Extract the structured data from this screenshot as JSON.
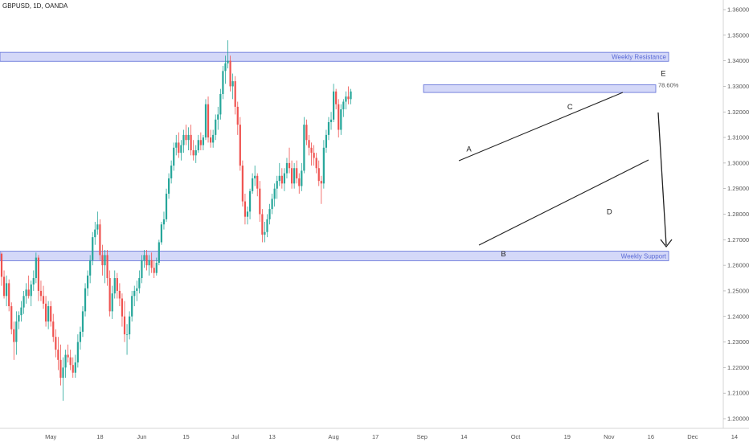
{
  "header": {
    "symbol": "GBPUSD, 1D, OANDA"
  },
  "colors": {
    "bull": "#26a69a",
    "bear": "#ef5350",
    "zone_fill": "#c5cbf5",
    "zone_stroke": "#5b6bd6",
    "zone_text": "#5b6bd6",
    "axis_bg": "#ffffff"
  },
  "chart_data": {
    "type": "candlestick",
    "title": "GBPUSD, 1D, OANDA",
    "ylim": [
      1.198,
      1.364
    ],
    "y_ticks": [
      "1.36000",
      "1.35000",
      "1.34000",
      "1.33000",
      "1.32000",
      "1.31000",
      "1.30000",
      "1.29000",
      "1.28000",
      "1.27000",
      "1.26000",
      "1.25000",
      "1.24000",
      "1.23000",
      "1.22000",
      "1.21000",
      "1.20000"
    ],
    "x_ticks": [
      {
        "label": "May",
        "bar": 20
      },
      {
        "label": "18",
        "bar": 40
      },
      {
        "label": "Jun",
        "bar": 57
      },
      {
        "label": "15",
        "bar": 75
      },
      {
        "label": "Jul",
        "bar": 95
      },
      {
        "label": "13",
        "bar": 110
      },
      {
        "label": "Aug",
        "bar": 135
      },
      {
        "label": "17",
        "bar": 152
      },
      {
        "label": "Sep",
        "bar": 171
      },
      {
        "label": "14",
        "bar": 188
      },
      {
        "label": "Oct",
        "bar": 209
      },
      {
        "label": "19",
        "bar": 230
      },
      {
        "label": "Nov",
        "bar": 247
      },
      {
        "label": "16",
        "bar": 264
      },
      {
        "label": "Dec",
        "bar": 281
      },
      {
        "label": "14",
        "bar": 298
      }
    ],
    "candles": [
      [
        1.2645,
        1.265,
        1.252,
        1.2555
      ],
      [
        1.2555,
        1.258,
        1.247,
        1.248
      ],
      [
        1.248,
        1.256,
        1.244,
        1.253
      ],
      [
        1.253,
        1.2545,
        1.242,
        1.244
      ],
      [
        1.244,
        1.2455,
        1.233,
        1.235
      ],
      [
        1.235,
        1.238,
        1.223,
        1.23
      ],
      [
        1.23,
        1.242,
        1.225,
        1.238
      ],
      [
        1.238,
        1.242,
        1.235,
        1.2405
      ],
      [
        1.2405,
        1.246,
        1.238,
        1.2435
      ],
      [
        1.2435,
        1.25,
        1.241,
        1.248
      ],
      [
        1.248,
        1.253,
        1.245,
        1.2505
      ],
      [
        1.2505,
        1.256,
        1.247,
        1.248
      ],
      [
        1.248,
        1.254,
        1.244,
        1.2525
      ],
      [
        1.2525,
        1.258,
        1.25,
        1.255
      ],
      [
        1.255,
        1.265,
        1.253,
        1.263
      ],
      [
        1.263,
        1.264,
        1.246,
        1.25
      ],
      [
        1.25,
        1.254,
        1.246,
        1.248
      ],
      [
        1.248,
        1.252,
        1.243,
        1.245
      ],
      [
        1.245,
        1.248,
        1.236,
        1.238
      ],
      [
        1.238,
        1.246,
        1.235,
        1.244
      ],
      [
        1.244,
        1.246,
        1.236,
        1.238
      ],
      [
        1.238,
        1.241,
        1.23,
        1.232
      ],
      [
        1.232,
        1.235,
        1.224,
        1.227
      ],
      [
        1.227,
        1.232,
        1.219,
        1.223
      ],
      [
        1.223,
        1.229,
        1.213,
        1.216
      ],
      [
        1.216,
        1.224,
        1.207,
        1.22
      ],
      [
        1.22,
        1.227,
        1.216,
        1.225
      ],
      [
        1.225,
        1.229,
        1.222,
        1.224
      ],
      [
        1.224,
        1.227,
        1.219,
        1.221
      ],
      [
        1.221,
        1.224,
        1.216,
        1.218
      ],
      [
        1.218,
        1.225,
        1.216,
        1.222
      ],
      [
        1.222,
        1.233,
        1.22,
        1.23
      ],
      [
        1.23,
        1.236,
        1.227,
        1.234
      ],
      [
        1.234,
        1.244,
        1.232,
        1.242
      ],
      [
        1.242,
        1.253,
        1.24,
        1.251
      ],
      [
        1.251,
        1.258,
        1.248,
        1.256
      ],
      [
        1.256,
        1.264,
        1.253,
        1.262
      ],
      [
        1.262,
        1.273,
        1.26,
        1.271
      ],
      [
        1.271,
        1.277,
        1.268,
        1.274
      ],
      [
        1.274,
        1.281,
        1.272,
        1.276
      ],
      [
        1.276,
        1.278,
        1.262,
        1.264
      ],
      [
        1.264,
        1.268,
        1.256,
        1.26
      ],
      [
        1.26,
        1.266,
        1.253,
        1.264
      ],
      [
        1.264,
        1.266,
        1.252,
        1.255
      ],
      [
        1.255,
        1.258,
        1.24,
        1.242
      ],
      [
        1.242,
        1.252,
        1.239,
        1.249
      ],
      [
        1.249,
        1.258,
        1.247,
        1.255
      ],
      [
        1.255,
        1.257,
        1.247,
        1.25
      ],
      [
        1.25,
        1.253,
        1.244,
        1.247
      ],
      [
        1.247,
        1.249,
        1.236,
        1.24
      ],
      [
        1.24,
        1.246,
        1.23,
        1.233
      ],
      [
        1.233,
        1.237,
        1.225,
        1.233
      ],
      [
        1.233,
        1.242,
        1.231,
        1.24
      ],
      [
        1.24,
        1.25,
        1.238,
        1.248
      ],
      [
        1.248,
        1.252,
        1.244,
        1.25
      ],
      [
        1.25,
        1.254,
        1.246,
        1.251
      ],
      [
        1.251,
        1.258,
        1.249,
        1.255
      ],
      [
        1.255,
        1.264,
        1.253,
        1.262
      ],
      [
        1.262,
        1.266,
        1.259,
        1.264
      ],
      [
        1.264,
        1.266,
        1.258,
        1.26
      ],
      [
        1.26,
        1.264,
        1.256,
        1.262
      ],
      [
        1.262,
        1.265,
        1.257,
        1.259
      ],
      [
        1.259,
        1.262,
        1.255,
        1.257
      ],
      [
        1.257,
        1.263,
        1.256,
        1.261
      ],
      [
        1.261,
        1.27,
        1.26,
        1.269
      ],
      [
        1.269,
        1.277,
        1.268,
        1.276
      ],
      [
        1.276,
        1.281,
        1.274,
        1.278
      ],
      [
        1.278,
        1.29,
        1.277,
        1.288
      ],
      [
        1.288,
        1.296,
        1.286,
        1.294
      ],
      [
        1.294,
        1.301,
        1.292,
        1.299
      ],
      [
        1.299,
        1.308,
        1.297,
        1.306
      ],
      [
        1.306,
        1.311,
        1.303,
        1.308
      ],
      [
        1.308,
        1.312,
        1.302,
        1.304
      ],
      [
        1.304,
        1.309,
        1.301,
        1.307
      ],
      [
        1.307,
        1.313,
        1.304,
        1.311
      ],
      [
        1.311,
        1.315,
        1.307,
        1.309
      ],
      [
        1.309,
        1.314,
        1.305,
        1.311
      ],
      [
        1.311,
        1.315,
        1.303,
        1.305
      ],
      [
        1.305,
        1.309,
        1.301,
        1.303
      ],
      [
        1.303,
        1.307,
        1.3,
        1.305
      ],
      [
        1.305,
        1.311,
        1.304,
        1.309
      ],
      [
        1.309,
        1.312,
        1.305,
        1.307
      ],
      [
        1.307,
        1.311,
        1.305,
        1.31
      ],
      [
        1.31,
        1.325,
        1.309,
        1.323
      ],
      [
        1.323,
        1.326,
        1.308,
        1.31
      ],
      [
        1.31,
        1.313,
        1.306,
        1.308
      ],
      [
        1.308,
        1.313,
        1.306,
        1.311
      ],
      [
        1.311,
        1.319,
        1.309,
        1.317
      ],
      [
        1.317,
        1.322,
        1.313,
        1.319
      ],
      [
        1.319,
        1.329,
        1.317,
        1.327
      ],
      [
        1.327,
        1.338,
        1.325,
        1.336
      ],
      [
        1.336,
        1.342,
        1.331,
        1.339
      ],
      [
        1.339,
        1.348,
        1.337,
        1.34
      ],
      [
        1.34,
        1.342,
        1.328,
        1.33
      ],
      [
        1.33,
        1.335,
        1.325,
        1.332
      ],
      [
        1.332,
        1.334,
        1.319,
        1.322
      ],
      [
        1.322,
        1.324,
        1.311,
        1.315
      ],
      [
        1.315,
        1.318,
        1.297,
        1.299
      ],
      [
        1.299,
        1.301,
        1.283,
        1.285
      ],
      [
        1.285,
        1.288,
        1.276,
        1.279
      ],
      [
        1.279,
        1.283,
        1.276,
        1.281
      ],
      [
        1.281,
        1.29,
        1.278,
        1.289
      ],
      [
        1.289,
        1.296,
        1.288,
        1.294
      ],
      [
        1.294,
        1.299,
        1.291,
        1.295
      ],
      [
        1.295,
        1.296,
        1.287,
        1.29
      ],
      [
        1.29,
        1.293,
        1.277,
        1.28
      ],
      [
        1.28,
        1.282,
        1.269,
        1.272
      ],
      [
        1.272,
        1.277,
        1.269,
        1.273
      ],
      [
        1.273,
        1.28,
        1.271,
        1.278
      ],
      [
        1.278,
        1.284,
        1.276,
        1.282
      ],
      [
        1.282,
        1.288,
        1.28,
        1.286
      ],
      [
        1.286,
        1.292,
        1.283,
        1.29
      ],
      [
        1.29,
        1.295,
        1.286,
        1.293
      ],
      [
        1.293,
        1.3,
        1.291,
        1.295
      ],
      [
        1.295,
        1.298,
        1.29,
        1.292
      ],
      [
        1.292,
        1.298,
        1.289,
        1.296
      ],
      [
        1.296,
        1.302,
        1.294,
        1.3
      ],
      [
        1.3,
        1.306,
        1.296,
        1.298
      ],
      [
        1.298,
        1.301,
        1.29,
        1.292
      ],
      [
        1.292,
        1.3,
        1.29,
        1.298
      ],
      [
        1.298,
        1.301,
        1.292,
        1.294
      ],
      [
        1.294,
        1.296,
        1.288,
        1.291
      ],
      [
        1.291,
        1.3,
        1.289,
        1.297
      ],
      [
        1.297,
        1.318,
        1.296,
        1.315
      ],
      [
        1.315,
        1.317,
        1.307,
        1.309
      ],
      [
        1.309,
        1.311,
        1.303,
        1.306
      ],
      [
        1.306,
        1.308,
        1.299,
        1.304
      ],
      [
        1.304,
        1.307,
        1.299,
        1.302
      ],
      [
        1.302,
        1.304,
        1.296,
        1.298
      ],
      [
        1.298,
        1.301,
        1.291,
        1.293
      ],
      [
        1.293,
        1.295,
        1.284,
        1.292
      ],
      [
        1.292,
        1.309,
        1.29,
        1.306
      ],
      [
        1.306,
        1.313,
        1.304,
        1.311
      ],
      [
        1.311,
        1.318,
        1.309,
        1.316
      ],
      [
        1.316,
        1.32,
        1.313,
        1.317
      ],
      [
        1.317,
        1.331,
        1.316,
        1.328
      ],
      [
        1.328,
        1.329,
        1.321,
        1.323
      ],
      [
        1.323,
        1.325,
        1.31,
        1.313
      ],
      [
        1.313,
        1.323,
        1.311,
        1.321
      ],
      [
        1.321,
        1.325,
        1.318,
        1.324
      ],
      [
        1.324,
        1.328,
        1.321,
        1.326
      ],
      [
        1.326,
        1.33,
        1.323,
        1.325
      ],
      [
        1.325,
        1.329,
        1.323,
        1.328
      ]
    ],
    "zones": [
      {
        "label": "Weekly Resistance",
        "from": 1.3398,
        "to": 1.3433
      },
      {
        "label": "Weekly Support",
        "from": 1.2618,
        "to": 1.2655
      }
    ],
    "fib": {
      "label": "78.60%",
      "from": 1.3276,
      "to": 1.3306
    },
    "wave_labels": [
      {
        "label": "A",
        "bar": 190,
        "price": 1.3045
      },
      {
        "label": "B",
        "bar": 204,
        "price": 1.2635
      },
      {
        "label": "C",
        "bar": 231,
        "price": 1.321
      },
      {
        "label": "D",
        "bar": 247,
        "price": 1.28
      },
      {
        "label": "E",
        "bar": 269,
        "price": 1.334
      }
    ]
  }
}
